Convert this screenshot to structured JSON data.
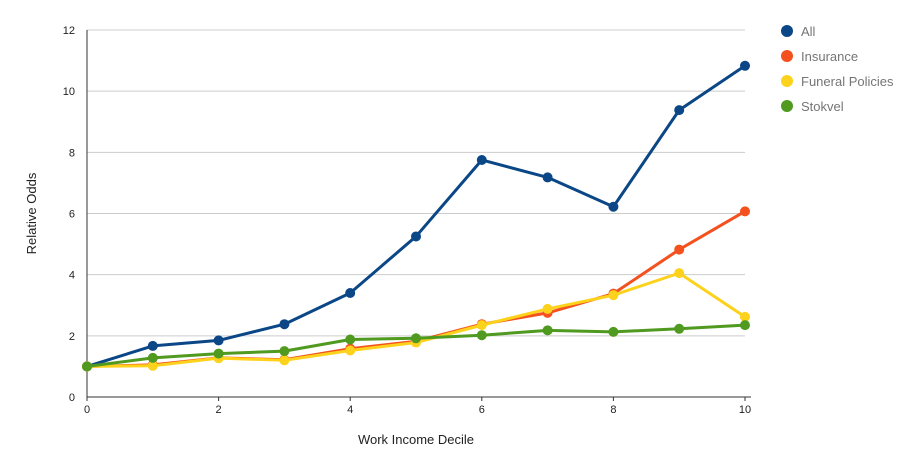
{
  "chart_data": {
    "type": "line",
    "title": "",
    "xlabel": "Work Income Decile",
    "ylabel": "Relative Odds",
    "xlim": [
      0,
      10
    ],
    "ylim": [
      0,
      12
    ],
    "x_ticks": [
      "0",
      "2",
      "4",
      "6",
      "8",
      "10"
    ],
    "y_ticks": [
      "0",
      "2",
      "4",
      "6",
      "8",
      "10",
      "12"
    ],
    "grid": true,
    "legend_position": "right",
    "x": [
      0,
      1,
      2,
      3,
      4,
      5,
      6,
      7,
      8,
      9,
      10
    ],
    "series": [
      {
        "name": "All",
        "color": "#0b4787",
        "values": [
          1.0,
          1.67,
          1.85,
          2.38,
          3.4,
          5.25,
          7.75,
          7.18,
          6.22,
          9.38,
          10.83
        ]
      },
      {
        "name": "Insurance",
        "color": "#f4511e",
        "values": [
          1.0,
          1.05,
          1.28,
          1.22,
          1.58,
          1.82,
          2.38,
          2.75,
          3.38,
          4.82,
          6.07
        ]
      },
      {
        "name": "Funeral Policies",
        "color": "#fcd21c",
        "values": [
          1.0,
          1.02,
          1.27,
          1.2,
          1.52,
          1.78,
          2.35,
          2.88,
          3.33,
          4.05,
          2.62
        ]
      },
      {
        "name": "Stokvel",
        "color": "#4f9a1f",
        "values": [
          1.0,
          1.28,
          1.42,
          1.5,
          1.88,
          1.92,
          2.02,
          2.18,
          2.13,
          2.23,
          2.35
        ]
      }
    ]
  }
}
